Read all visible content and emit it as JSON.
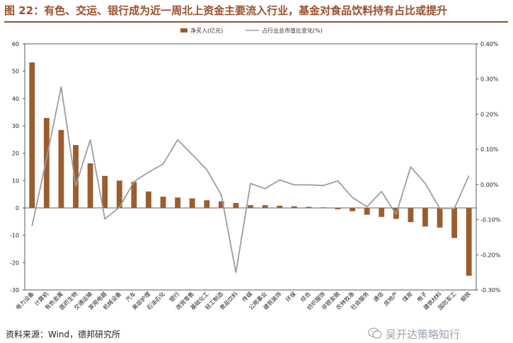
{
  "title": "图 22：有色、交运、银行成为近一周北上资金主要流入行业，基金对食品饮料持有占比或提升",
  "source": "资料来源：Wind，德邦研究所",
  "watermark": "吴开达策略知行",
  "colors": {
    "bar": "#9b5c2e",
    "line": "#9d9d9d",
    "title": "#9b4f2a"
  },
  "chart_data": {
    "type": "bar",
    "categories": [
      "电力设备",
      "计算机",
      "有色金属",
      "医药生物",
      "交通运输",
      "家用电器",
      "机械设备",
      "汽车",
      "美容护理",
      "石油石化",
      "银行",
      "商贸零售",
      "基础化工",
      "轻工制造",
      "食品饮料",
      "传媒",
      "公用事业",
      "建筑装饰",
      "环保",
      "综合",
      "纺织服饰",
      "非银金融",
      "农林牧渔",
      "社会服务",
      "通信",
      "房地产",
      "煤炭",
      "电子",
      "建筑材料",
      "国防军工",
      "钢铁"
    ],
    "series": [
      {
        "name": "净买入(亿元)",
        "axis": "left",
        "type": "bar",
        "values": [
          53.2,
          32.9,
          28.5,
          23.0,
          16.3,
          11.7,
          10.0,
          9.5,
          6.0,
          4.1,
          3.8,
          3.5,
          2.8,
          2.4,
          1.8,
          1.0,
          1.0,
          0.8,
          0.6,
          0.4,
          0.2,
          -0.5,
          -1.2,
          -2.5,
          -3.3,
          -4.0,
          -5.2,
          -6.8,
          -7.2,
          -11.0,
          -24.8
        ]
      },
      {
        "name": "占行业总市值比变化(%)",
        "axis": "right",
        "type": "line",
        "values": [
          -0.118,
          0.075,
          0.278,
          -0.004,
          0.127,
          -0.098,
          -0.065,
          0.008,
          0.035,
          0.058,
          0.127,
          0.085,
          0.042,
          -0.03,
          -0.25,
          0.003,
          -0.012,
          0.013,
          -0.001,
          -0.001,
          -0.003,
          0.01,
          -0.037,
          -0.063,
          -0.02,
          -0.085,
          0.05,
          0.003,
          -0.068,
          -0.068,
          0.025
        ]
      }
    ],
    "left_axis": {
      "ylim": [
        -30,
        60
      ],
      "ticks": [
        "60",
        "50",
        "40",
        "30",
        "20",
        "10",
        "0",
        "-10",
        "-20",
        "-30"
      ]
    },
    "right_axis": {
      "ylim": [
        -0.3,
        0.4
      ],
      "ticks": [
        "0.40%",
        "0.30%",
        "0.20%",
        "0.10%",
        "0.00%",
        "-0.10%",
        "-0.20%",
        "-0.30%"
      ]
    },
    "legend": "top-center",
    "grid": false
  }
}
